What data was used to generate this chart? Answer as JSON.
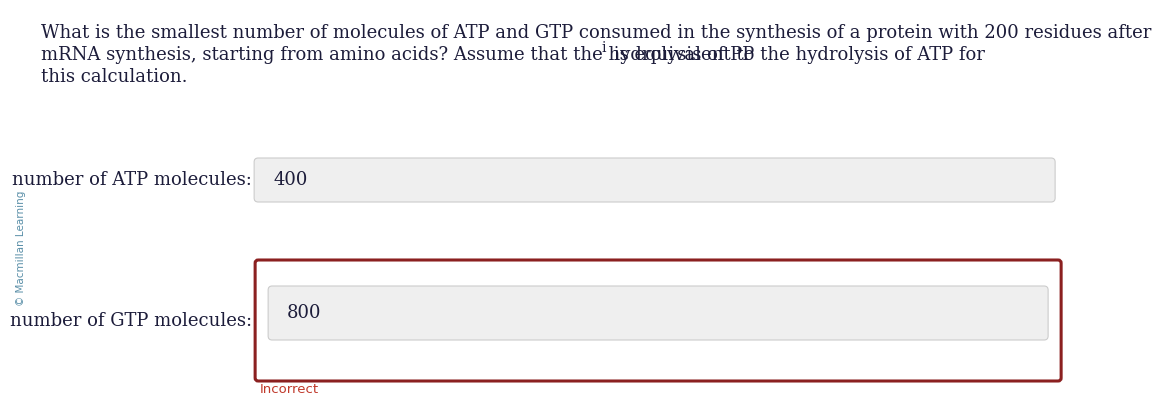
{
  "bg_color": "#ffffff",
  "question_line1": "What is the smallest number of molecules of ATP and GTP consumed in the synthesis of a protein with 200 residues after",
  "question_line2_pre": "mRNA synthesis, starting from amino acids? Assume that the hydrolysis of PP",
  "question_line2_sub": "i",
  "question_line2_post": " is equivalent to the hydrolysis of ATP for",
  "question_line3": "this calculation.",
  "label_atp": "number of ATP molecules:",
  "label_gtp": "number of GTP molecules:",
  "value_atp": "400",
  "value_gtp": "800",
  "incorrect_text": "Incorrect",
  "incorrect_color": "#c0392b",
  "input_box_bg": "#efefef",
  "input_box_border": "#cccccc",
  "error_box_border": "#8b2020",
  "text_color": "#1c1c3a",
  "sidebar_text": "© Macmillan Learning",
  "sidebar_color": "#5a8fa8",
  "font_size_question": 13.0,
  "font_size_label": 13.0,
  "font_size_value": 13.0,
  "font_size_incorrect": 9.5,
  "font_size_sidebar": 7.5
}
